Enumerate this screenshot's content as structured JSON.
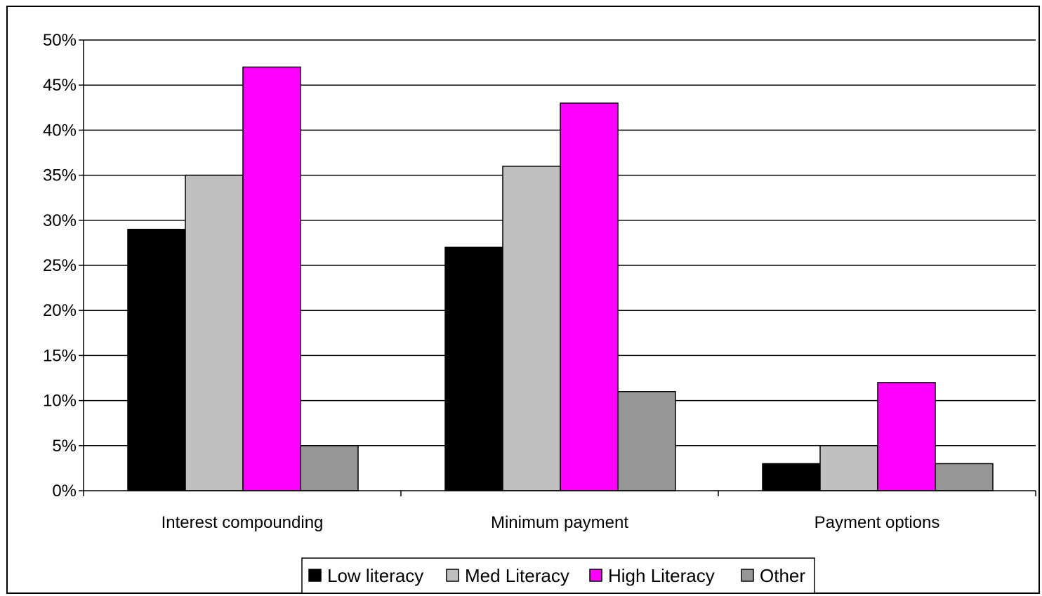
{
  "chart_data": {
    "type": "bar",
    "categories": [
      "Interest compounding",
      "Minimum payment",
      "Payment options"
    ],
    "series": [
      {
        "name": "Low literacy",
        "color": "#000000",
        "values": [
          29,
          27,
          3
        ]
      },
      {
        "name": "Med Literacy",
        "color": "#c0c0c0",
        "values": [
          35,
          36,
          5
        ]
      },
      {
        "name": "High Literacy",
        "color": "#ff00ff",
        "values": [
          47,
          43,
          12
        ]
      },
      {
        "name": "Other",
        "color": "#969696",
        "values": [
          5,
          11,
          3
        ]
      }
    ],
    "yticks": [
      "0%",
      "5%",
      "10%",
      "15%",
      "20%",
      "25%",
      "30%",
      "35%",
      "40%",
      "45%",
      "50%"
    ],
    "ylim": [
      0,
      50
    ],
    "yunit": "%",
    "grid": true,
    "legend_position": "bottom"
  }
}
